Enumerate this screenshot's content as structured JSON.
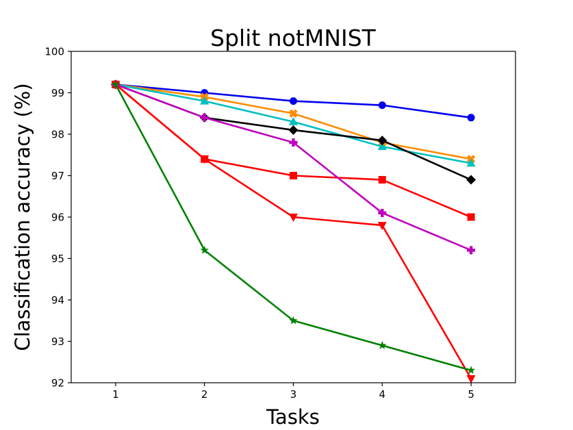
{
  "chart_data": {
    "type": "line",
    "title": "Split notMNIST",
    "xlabel": "Tasks",
    "ylabel": "Classification accuracy (%)",
    "x": [
      1,
      2,
      3,
      4,
      5
    ],
    "xticks": [
      "1",
      "2",
      "3",
      "4",
      "5"
    ],
    "xlim": [
      0.5,
      5.5
    ],
    "ylim": [
      92,
      100
    ],
    "yticks": [
      "92",
      "93",
      "94",
      "95",
      "96",
      "97",
      "98",
      "99",
      "100"
    ],
    "grid": false,
    "series": [
      {
        "color": "#0000ee",
        "marker": "circle",
        "values": [
          99.2,
          99.0,
          98.8,
          98.7,
          98.4
        ]
      },
      {
        "color": "#ff8c00",
        "marker": "x",
        "values": [
          99.2,
          98.9,
          98.5,
          97.8,
          97.4
        ]
      },
      {
        "color": "#00bfbf",
        "marker": "triangle-up",
        "values": [
          99.2,
          98.8,
          98.3,
          97.7,
          97.3
        ]
      },
      {
        "color": "#000000",
        "marker": "diamond",
        "values": [
          99.2,
          98.4,
          98.1,
          97.85,
          96.9
        ]
      },
      {
        "color": "#ff0000",
        "marker": "square",
        "values": [
          99.2,
          97.4,
          97.0,
          96.9,
          96.0
        ]
      },
      {
        "color": "#bf00bf",
        "marker": "plus",
        "values": [
          99.2,
          98.4,
          97.8,
          96.1,
          95.2
        ]
      },
      {
        "color": "#ff0000",
        "marker": "triangle-down",
        "values": [
          99.2,
          97.4,
          96.0,
          95.8,
          92.1
        ]
      },
      {
        "color": "#008000",
        "marker": "star",
        "values": [
          99.2,
          95.2,
          93.5,
          92.9,
          92.3
        ]
      }
    ]
  }
}
